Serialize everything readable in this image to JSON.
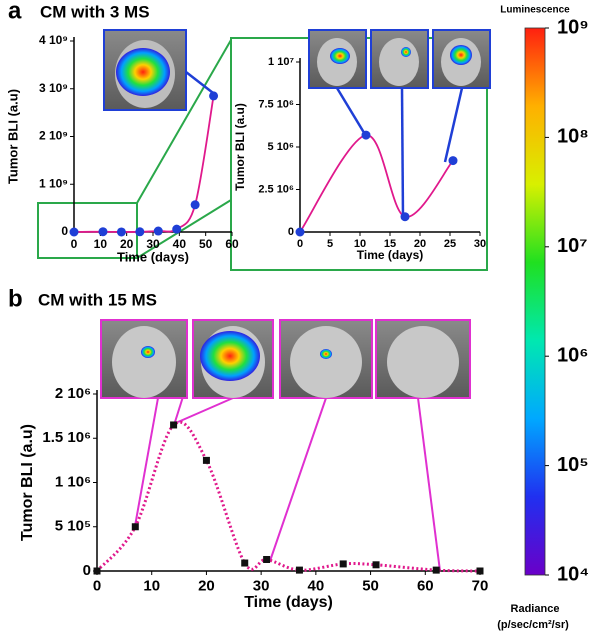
{
  "chart_data": [
    {
      "type": "line",
      "panel": "a",
      "title": "CM with 3 MS",
      "x_label": "Time (days)",
      "y_label": "Tumor BLI (a.u)",
      "xlim": [
        0,
        60
      ],
      "xticks": [
        0,
        10,
        20,
        30,
        40,
        50,
        60
      ],
      "ylim": [
        0,
        4000000000
      ],
      "yticks": [
        0,
        {
          "value": 1000000000,
          "label": "1 10⁹"
        },
        {
          "value": 2000000000,
          "label": "2 10⁹"
        },
        {
          "value": 3000000000,
          "label": "3 10⁹"
        },
        {
          "value": 4000000000,
          "label": "4 10⁹"
        }
      ],
      "series": [
        {
          "x": [
            0,
            11,
            18,
            25,
            32,
            39,
            46,
            53
          ],
          "values": [
            0,
            5700000,
            900000,
            4200000,
            20000000,
            60000000,
            570000000,
            2850000000
          ],
          "color": "#e0198c",
          "marker_color": "#1f3fd6",
          "marker": "circle",
          "line_style": "solid"
        }
      ]
    },
    {
      "type": "line",
      "x_label": "Time (days)",
      "y_label": "Tumor BLI (a.u)",
      "xlim": [
        0,
        30
      ],
      "xticks": [
        0,
        5,
        10,
        15,
        20,
        25,
        30
      ],
      "ylim": [
        0,
        10000000
      ],
      "yticks": [
        0,
        {
          "value": 2500000,
          "label": "2.5 10⁶"
        },
        {
          "value": 5000000,
          "label": "5 10⁶"
        },
        {
          "value": 7500000,
          "label": "7.5 10⁶"
        },
        {
          "value": 10000000,
          "label": "1 10⁷"
        }
      ],
      "series": [
        {
          "x": [
            0,
            11,
            17.5,
            25.5
          ],
          "values": [
            0,
            5700000,
            900000,
            4200000
          ],
          "color": "#e0198c",
          "marker_color": "#1f3fd6",
          "marker": "circle",
          "line_style": "solid"
        }
      ]
    },
    {
      "type": "line",
      "panel": "b",
      "title": "CM with 15 MS",
      "x_label": "Time (days)",
      "y_label": "Tumor BLI (a.u)",
      "xlim": [
        0,
        70
      ],
      "xticks": [
        0,
        10,
        20,
        30,
        40,
        50,
        60,
        70
      ],
      "ylim": [
        0,
        2000000
      ],
      "yticks": [
        0,
        {
          "value": 500000,
          "label": "5 10⁵"
        },
        {
          "value": 1000000,
          "label": "1 10⁶"
        },
        {
          "value": 1500000,
          "label": "1.5 10⁶"
        },
        {
          "value": 2000000,
          "label": "2 10⁶"
        }
      ],
      "series": [
        {
          "x": [
            0,
            7,
            14,
            20,
            27,
            31,
            37,
            45,
            51,
            62,
            70
          ],
          "values": [
            0,
            500000,
            1650000,
            1250000,
            90000,
            130000,
            10000,
            80000,
            70000,
            10000,
            0
          ],
          "color": "#e0198c",
          "marker_color": "#111111",
          "marker": "square",
          "line_style": "dotted"
        }
      ]
    },
    {
      "type": "colorbar",
      "title": "Luminescence",
      "label": "Radiance",
      "units": "(p/sec/cm²/sr)",
      "log_scale": true,
      "ylim": [
        10000,
        1000000000
      ],
      "yticks": [
        {
          "value": 10000,
          "label": "10⁴"
        },
        {
          "value": 100000,
          "label": "10⁵"
        },
        {
          "value": 1000000,
          "label": "10⁶"
        },
        {
          "value": 10000000,
          "label": "10⁷"
        },
        {
          "value": 100000000,
          "label": "10⁸"
        },
        {
          "value": 1000000000,
          "label": "10⁹"
        }
      ],
      "colors": [
        "#6a00c8",
        "#2030f0",
        "#00a8ff",
        "#00e8b0",
        "#20e020",
        "#d8f000",
        "#ffb000",
        "#ff2010"
      ]
    }
  ]
}
